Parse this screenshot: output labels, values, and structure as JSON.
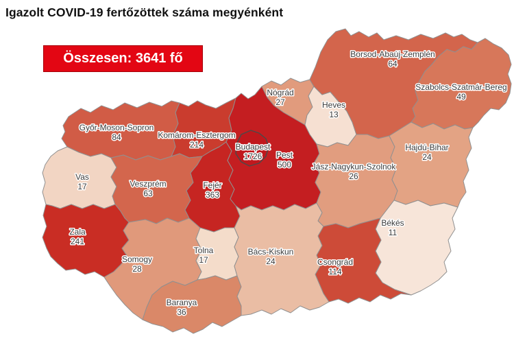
{
  "title": "Igazolt COVID-19 fertőzöttek száma megyénként",
  "total_box": {
    "label": "Összesen: 3641 fő",
    "bg_color": "#e30613",
    "border_color": "#a50008",
    "text_color": "#ffffff"
  },
  "map": {
    "border_color": "#909090",
    "budapest_border_color": "#4a4a4a",
    "label_color": "#3b3b3b",
    "counties": [
      {
        "id": "gyor-moson-sopron",
        "name": "Győr-Moson-Sopron",
        "value": "84",
        "color": "#d15c46"
      },
      {
        "id": "komarom-esztergom",
        "name": "Komárom-Esztergom",
        "value": "214",
        "color": "#ca3c2e"
      },
      {
        "id": "vas",
        "name": "Vas",
        "value": "17",
        "color": "#f2d5c3"
      },
      {
        "id": "veszprem",
        "name": "Veszprém",
        "value": "63",
        "color": "#d3664d"
      },
      {
        "id": "zala",
        "name": "Zala",
        "value": "241",
        "color": "#c92d24"
      },
      {
        "id": "somogy",
        "name": "Somogy",
        "value": "28",
        "color": "#e0997b"
      },
      {
        "id": "fejer",
        "name": "Fejér",
        "value": "363",
        "color": "#c62522"
      },
      {
        "id": "tolna",
        "name": "Tolna",
        "value": "17",
        "color": "#f4dcca"
      },
      {
        "id": "baranya",
        "name": "Baranya",
        "value": "36",
        "color": "#da8868"
      },
      {
        "id": "pest",
        "name": "Pest",
        "value": "500",
        "color": "#c41e21"
      },
      {
        "id": "budapest",
        "name": "Budapest",
        "value": "1726",
        "color": "#c0181d"
      },
      {
        "id": "nograd",
        "name": "Nógrád",
        "value": "27",
        "color": "#e19b7d"
      },
      {
        "id": "heves",
        "name": "Heves",
        "value": "13",
        "color": "#f6e0d2"
      },
      {
        "id": "borsod-abauj-zemplen",
        "name": "Borsod-Abaúj-Zemplén",
        "value": "64",
        "color": "#d3654c"
      },
      {
        "id": "szabolcs-szatmar-bereg",
        "name": "Szabolcs-Szatmár-Bereg",
        "value": "49",
        "color": "#d7775a"
      },
      {
        "id": "jasz-nagykun-szolnok",
        "name": "Jász-Nagykun-Szolnok",
        "value": "26",
        "color": "#e19d7f"
      },
      {
        "id": "hajdu-bihar",
        "name": "Hajdú-Bihar",
        "value": "24",
        "color": "#e3a384"
      },
      {
        "id": "bekes",
        "name": "Békés",
        "value": "11",
        "color": "#f7e5d9"
      },
      {
        "id": "csongrad",
        "name": "Csongrád",
        "value": "114",
        "color": "#cd4b38"
      },
      {
        "id": "bacs-kiskun",
        "name": "Bács-Kiskun",
        "value": "24",
        "color": "#eabda4"
      }
    ]
  },
  "chart_data": {
    "type": "heatmap",
    "subtype": "choropleth map of Hungary counties",
    "title": "Igazolt COVID-19 fertőzöttek száma megyénként",
    "total_label": "Összesen: 3641 fő",
    "total": 3641,
    "categories": [
      "Budapest",
      "Pest",
      "Fejér",
      "Zala",
      "Komárom-Esztergom",
      "Csongrád",
      "Győr-Moson-Sopron",
      "Borsod-Abaúj-Zemplén",
      "Veszprém",
      "Szabolcs-Szatmár-Bereg",
      "Baranya",
      "Somogy",
      "Nógrád",
      "Jász-Nagykun-Szolnok",
      "Hajdú-Bihar",
      "Bács-Kiskun",
      "Vas",
      "Tolna",
      "Heves",
      "Békés"
    ],
    "values": [
      1726,
      500,
      363,
      241,
      214,
      114,
      84,
      64,
      63,
      49,
      36,
      28,
      27,
      26,
      24,
      24,
      17,
      17,
      13,
      11
    ],
    "color_scale_low": "#f7e5d9",
    "color_scale_high": "#c0181d",
    "legend_position": "none"
  }
}
